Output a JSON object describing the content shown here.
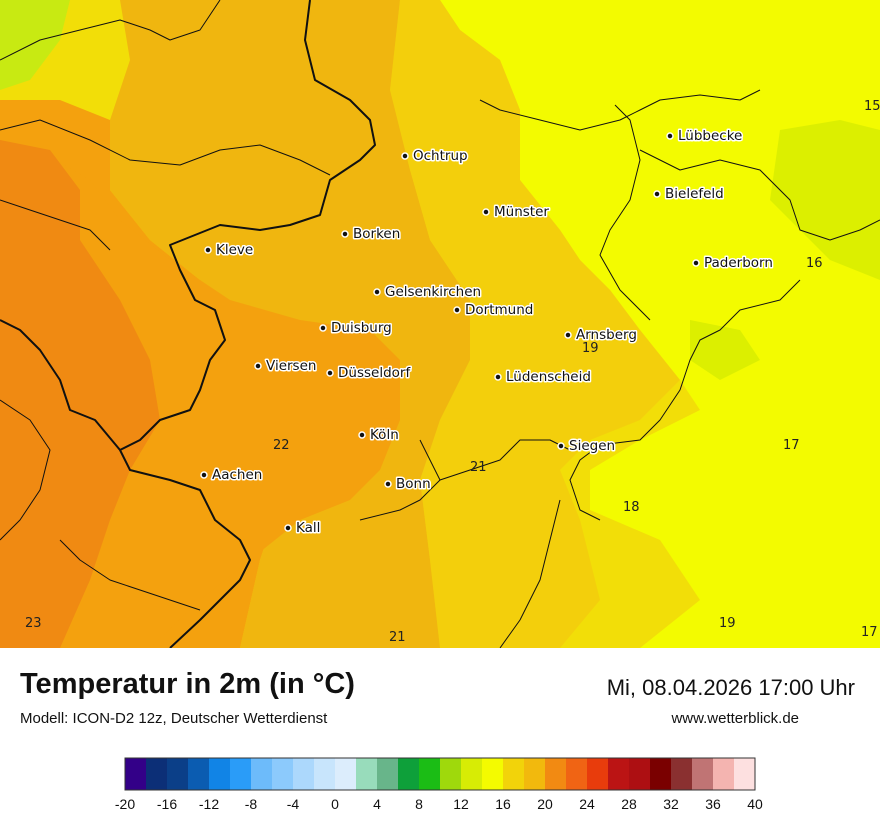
{
  "map": {
    "colors": {
      "c23": "#f08a12",
      "c22": "#f4a10e",
      "c21": "#f0b60f",
      "c20": "#f3cf0c",
      "c19": "#f2de08",
      "c18": "#f6ee04",
      "c17": "#f3fb00",
      "c16": "#dcef00",
      "c15": "#c8ea12",
      "border": "#111111"
    },
    "cities": [
      {
        "name": "Ochtrup"
      },
      {
        "name": "Lübbecke"
      },
      {
        "name": "Bielefeld"
      },
      {
        "name": "Münster"
      },
      {
        "name": "Borken"
      },
      {
        "name": "Kleve"
      },
      {
        "name": "Paderborn"
      },
      {
        "name": "Gelsenkirchen"
      },
      {
        "name": "Dortmund"
      },
      {
        "name": "Duisburg"
      },
      {
        "name": "Arnsberg"
      },
      {
        "name": "Viersen"
      },
      {
        "name": "Düsseldorf"
      },
      {
        "name": "Lüdenscheid"
      },
      {
        "name": "Köln"
      },
      {
        "name": "Siegen"
      },
      {
        "name": "Aachen"
      },
      {
        "name": "Bonn"
      },
      {
        "name": "Kall"
      }
    ],
    "isolines": [
      "15",
      "16",
      "19",
      "22",
      "21",
      "17",
      "18",
      "19",
      "17",
      "23",
      "21"
    ]
  },
  "header": {
    "title": "Temperatur in 2m (in °C)",
    "model": "Modell: ICON-D2 12z, Deutscher Wetterdienst",
    "datetime": "Mi, 08.04.2026 17:00 Uhr",
    "site": "www.wetterblick.de"
  },
  "legend": {
    "colors": [
      "#330088",
      "#0c2f77",
      "#0b3f88",
      "#0b5cb1",
      "#1184e6",
      "#2a9cf8",
      "#6dbbfa",
      "#8ccafc",
      "#acd8fc",
      "#c8e5fc",
      "#dcedfc",
      "#98dcbb",
      "#68b58a",
      "#0ea03a",
      "#1bbd15",
      "#9fd90c",
      "#d7ec05",
      "#f4fb00",
      "#f2d30a",
      "#f2b90d",
      "#f28a12",
      "#f06414",
      "#e83c0c",
      "#bb1414",
      "#ad0f12",
      "#7a0000",
      "#8a3030",
      "#c07474",
      "#f4b4b0",
      "#fde0e0"
    ],
    "ticks": [
      "-20",
      "-16",
      "-12",
      "-8",
      "-4",
      "0",
      "4",
      "8",
      "12",
      "16",
      "20",
      "24",
      "28",
      "32",
      "36",
      "40"
    ]
  }
}
